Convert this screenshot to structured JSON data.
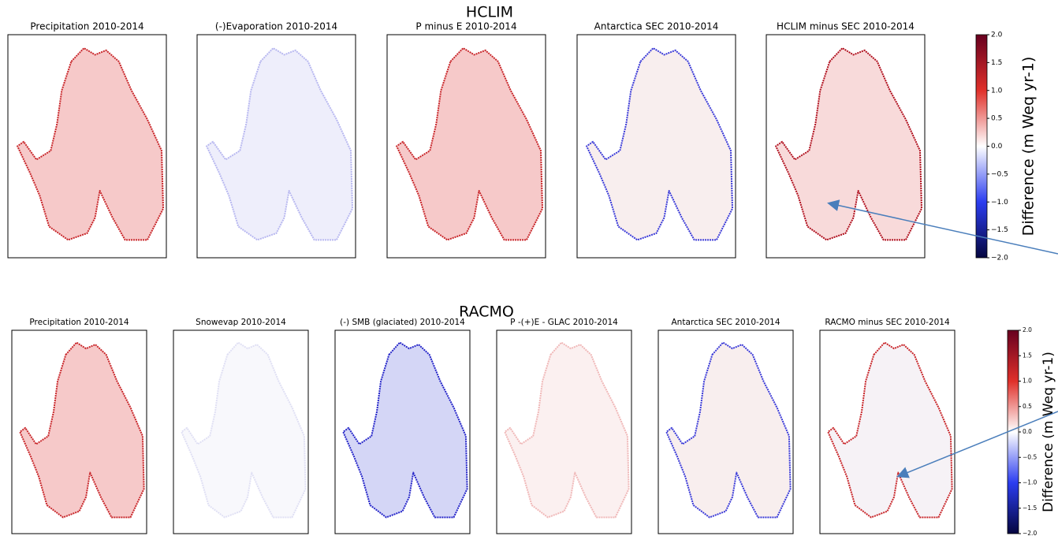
{
  "rows": [
    {
      "title": "HCLIM",
      "panels": [
        "Precipitation 2010-2014",
        "(-)Evaporation 2010-2014",
        "P minus E 2010-2014",
        "Antarctica SEC 2010-2014",
        "HCLIM minus SEC 2010-2014"
      ],
      "colorbar": {
        "label": "Difference (m Weq yr-1)",
        "ticks": [
          {
            "value": 2,
            "label": "2.0"
          },
          {
            "value": 1.5,
            "label": "1.5"
          },
          {
            "value": 1,
            "label": "1.0"
          },
          {
            "value": 0.5,
            "label": "0.5"
          },
          {
            "value": 0,
            "label": "0.0"
          },
          {
            "value": -0.5,
            "label": "−0.5"
          },
          {
            "value": -1,
            "label": "−1.0"
          },
          {
            "value": -1.5,
            "label": "−1.5"
          },
          {
            "value": -2,
            "label": "−2.0"
          }
        ]
      }
    },
    {
      "title": "RACMO",
      "panels": [
        "Precipitation 2010-2014",
        "Snowevap 2010-2014",
        "(-) SMB (glaciated) 2010-2014",
        "P -(+)E - GLAC 2010-2014",
        "Antarctica SEC 2010-2014",
        "RACMO minus SEC 2010-2014"
      ],
      "colorbar": {
        "label": "Difference (m Weq yr-1)",
        "ticks": [
          {
            "value": 2,
            "label": "2.0"
          },
          {
            "value": 1.5,
            "label": "1.5"
          },
          {
            "value": 1,
            "label": "1.0"
          },
          {
            "value": 0.5,
            "label": "0.5"
          },
          {
            "value": 0,
            "label": "0.0"
          },
          {
            "value": -0.5,
            "label": "−0.5"
          },
          {
            "value": -1,
            "label": "−1.0"
          },
          {
            "value": -1.5,
            "label": "−1.5"
          },
          {
            "value": -2,
            "label": "−2.0"
          }
        ]
      }
    }
  ]
}
